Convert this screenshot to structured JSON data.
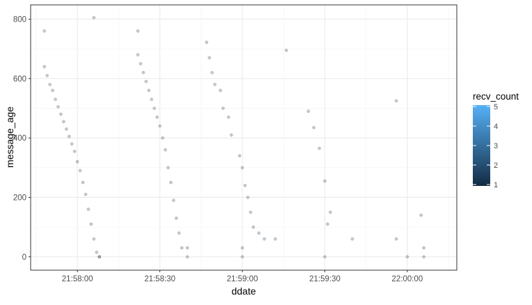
{
  "chart_data": {
    "type": "scatter",
    "xlabel": "ddate",
    "ylabel": "message_age",
    "x_ticks": [
      "21:58:00",
      "21:58:30",
      "21:59:00",
      "21:59:30",
      "22:00:00"
    ],
    "x_unit": "time (HH:MM:SS)",
    "xlim": [
      "21:57:43",
      "22:00:18"
    ],
    "ylim": [
      -45,
      848
    ],
    "y_ticks": [
      0,
      200,
      400,
      600,
      800
    ],
    "grid": true,
    "legend": {
      "title": "recv_count",
      "placement": "right",
      "type": "colorbar",
      "ticks": [
        1,
        2,
        3,
        4,
        5
      ],
      "color_low": "#132B43",
      "color_high": "#56B1F7"
    },
    "color_scale": {
      "low": "#132B43",
      "high": "#56B1F7",
      "min": 1,
      "max": 5
    },
    "point_alpha": 0.25,
    "series": [
      {
        "points": [
          [
            "21:57:48",
            760,
            1
          ],
          [
            "21:57:48",
            640,
            1
          ],
          [
            "21:57:49",
            610,
            1
          ],
          [
            "21:57:50",
            580,
            1
          ],
          [
            "21:57:51",
            560,
            1
          ],
          [
            "21:57:52",
            530,
            1
          ],
          [
            "21:57:53",
            505,
            1
          ],
          [
            "21:57:54",
            480,
            1
          ],
          [
            "21:57:55",
            455,
            1
          ],
          [
            "21:57:56",
            430,
            1
          ],
          [
            "21:57:57",
            405,
            1
          ],
          [
            "21:57:58",
            380,
            1
          ],
          [
            "21:57:59",
            355,
            1
          ],
          [
            "21:58:00",
            320,
            1
          ],
          [
            "21:58:01",
            290,
            1
          ],
          [
            "21:58:02",
            250,
            1
          ],
          [
            "21:58:03",
            210,
            1
          ],
          [
            "21:58:04",
            160,
            1
          ],
          [
            "21:58:05",
            110,
            1
          ],
          [
            "21:58:06",
            60,
            1
          ],
          [
            "21:58:07",
            15,
            1
          ],
          [
            "21:58:08",
            0,
            1
          ]
        ]
      },
      {
        "points": [
          [
            "21:58:06",
            805,
            1
          ],
          [
            "21:58:22",
            760,
            1
          ],
          [
            "21:58:22",
            680,
            1
          ],
          [
            "21:58:23",
            650,
            1
          ],
          [
            "21:58:24",
            620,
            1
          ],
          [
            "21:58:25",
            590,
            1
          ],
          [
            "21:58:26",
            560,
            1
          ],
          [
            "21:58:27",
            530,
            1
          ],
          [
            "21:58:28",
            500,
            1
          ],
          [
            "21:58:29",
            470,
            1
          ],
          [
            "21:58:30",
            440,
            1
          ],
          [
            "21:58:31",
            400,
            1
          ],
          [
            "21:58:32",
            360,
            1
          ],
          [
            "21:58:33",
            300,
            1
          ],
          [
            "21:58:34",
            250,
            1
          ],
          [
            "21:58:35",
            190,
            1
          ],
          [
            "21:58:36",
            130,
            1
          ],
          [
            "21:58:37",
            80,
            1
          ],
          [
            "21:58:38",
            30,
            1
          ],
          [
            "21:58:40",
            30,
            1
          ]
        ]
      },
      {
        "points": [
          [
            "21:58:47",
            722,
            1
          ],
          [
            "21:58:48",
            670,
            1
          ],
          [
            "21:58:49",
            620,
            1
          ],
          [
            "21:58:50",
            580,
            1
          ],
          [
            "21:58:52",
            560,
            1
          ],
          [
            "21:58:53",
            500,
            1
          ],
          [
            "21:58:55",
            470,
            1
          ],
          [
            "21:58:56",
            410,
            1
          ],
          [
            "21:58:59",
            340,
            1
          ],
          [
            "21:59:00",
            300,
            1
          ],
          [
            "21:59:01",
            240,
            1
          ],
          [
            "21:59:02",
            200,
            1
          ],
          [
            "21:59:03",
            150,
            1
          ],
          [
            "21:59:04",
            100,
            1
          ],
          [
            "21:59:06",
            80,
            1
          ],
          [
            "21:59:08",
            60,
            1
          ],
          [
            "21:59:12",
            60,
            1
          ],
          [
            "21:59:16",
            695,
            1
          ],
          [
            "21:59:24",
            490,
            1
          ],
          [
            "21:59:26",
            435,
            1
          ],
          [
            "21:59:28",
            365,
            1
          ],
          [
            "21:59:30",
            255,
            1
          ],
          [
            "21:59:32",
            150,
            1
          ],
          [
            "21:59:31",
            110,
            1
          ],
          [
            "21:59:40",
            60,
            1
          ],
          [
            "21:59:56",
            525,
            1
          ],
          [
            "21:59:56",
            60,
            1
          ],
          [
            "22:00:05",
            140,
            1
          ]
        ]
      },
      {
        "points": [
          [
            "21:58:08",
            0,
            1
          ],
          [
            "21:58:40",
            0,
            1
          ],
          [
            "21:59:00",
            0,
            1
          ],
          [
            "21:59:30",
            0,
            1
          ],
          [
            "22:00:00",
            0,
            1
          ],
          [
            "22:00:06",
            0,
            1
          ],
          [
            "21:59:00",
            30,
            1
          ],
          [
            "22:00:06",
            30,
            1
          ]
        ]
      }
    ]
  }
}
